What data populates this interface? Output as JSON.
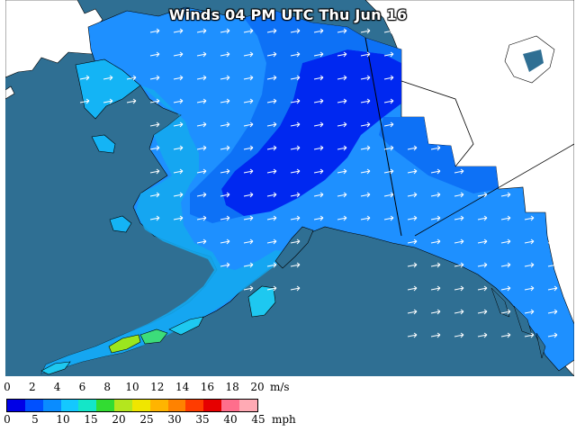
{
  "title": "Winds 04 PM UTC Thu Jun 16",
  "legend": {
    "ms_ticks": [
      "0",
      "2",
      "4",
      "6",
      "8",
      "10",
      "12",
      "14",
      "16",
      "18",
      "20"
    ],
    "ms_unit": "m/s",
    "mph_ticks": [
      "0",
      "5",
      "10",
      "15",
      "20",
      "25",
      "30",
      "35",
      "40",
      "45"
    ],
    "mph_unit": "mph",
    "colors": [
      "#0000e6",
      "#0050ff",
      "#0a8cff",
      "#14c8ff",
      "#14e6c8",
      "#32dc32",
      "#b4e61e",
      "#f0e600",
      "#ffb400",
      "#ff8200",
      "#ff3c00",
      "#e60000",
      "#ff6e8c",
      "#ffaab4"
    ]
  },
  "colors": {
    "ocean": "#2f6f93",
    "land_other": "#ffffff",
    "coast_outline": "#000000"
  }
}
